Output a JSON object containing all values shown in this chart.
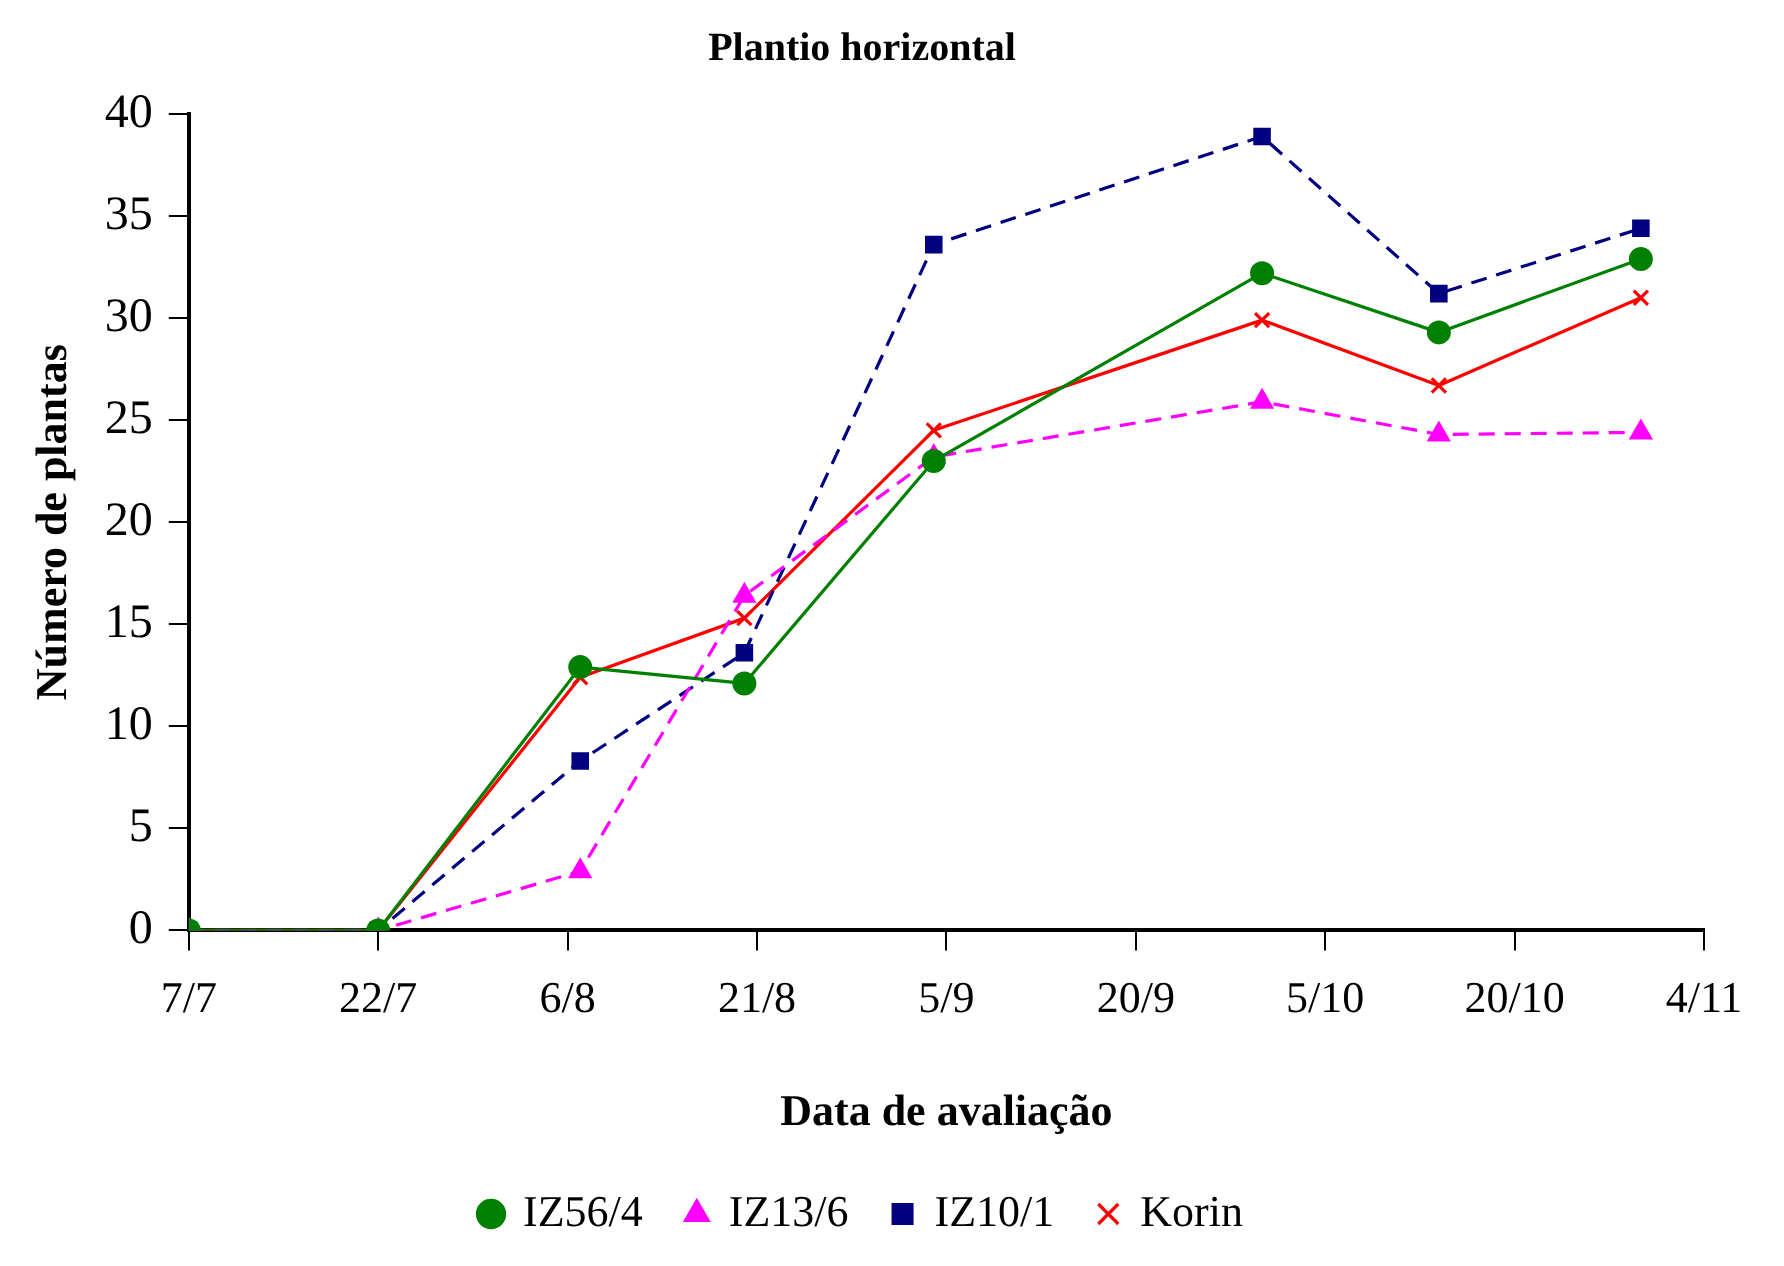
{
  "chart_data": {
    "type": "line",
    "title": "Plantio horizontal",
    "xlabel": "Data de avaliação",
    "ylabel": "Número de plantas",
    "x": [
      "--07-07",
      "--07-22",
      "--08-07",
      "--08-20",
      "--09-04",
      "--09-30",
      "--10-14",
      "--10-30"
    ],
    "series": [
      {
        "name": "Korin",
        "color": "#ff0000",
        "marker": "cross",
        "line_style": "solid",
        "values": [
          0,
          0,
          12.4,
          15.3,
          24.5,
          29.9,
          26.7,
          31.0
        ]
      },
      {
        "name": "IZ10/1",
        "color": "#000080",
        "marker": "square",
        "line_style": "dashed",
        "values": [
          0,
          0,
          8.3,
          13.6,
          33.6,
          38.9,
          31.2,
          34.4
        ]
      },
      {
        "name": "IZ13/6",
        "color": "#ff00ff",
        "marker": "triangle",
        "line_style": "dashed",
        "values": [
          0,
          0,
          2.9,
          16.4,
          23.2,
          25.9,
          24.3,
          24.4
        ]
      },
      {
        "name": "IZ56/4",
        "color": "#008000",
        "marker": "circle",
        "line_style": "solid",
        "values": [
          0,
          0,
          12.9,
          12.1,
          23.0,
          32.2,
          29.3,
          32.9
        ]
      }
    ],
    "xlim": [
      "--07-07",
      "--11-04"
    ],
    "xticks": [
      {
        "value": "--07-07",
        "label": "7/7"
      },
      {
        "value": "--07-22",
        "label": "22/7"
      },
      {
        "value": "--08-06",
        "label": "6/8"
      },
      {
        "value": "--08-21",
        "label": "21/8"
      },
      {
        "value": "--09-05",
        "label": "5/9"
      },
      {
        "value": "--09-20",
        "label": "20/9"
      },
      {
        "value": "--10-05",
        "label": "5/10"
      },
      {
        "value": "--10-20",
        "label": "20/10"
      },
      {
        "value": "--11-04",
        "label": "4/11"
      }
    ],
    "ylim": [
      0,
      40
    ],
    "yticks": [
      0,
      5,
      10,
      15,
      20,
      25,
      30,
      35,
      40
    ],
    "grid": false,
    "legend": "bottom"
  }
}
